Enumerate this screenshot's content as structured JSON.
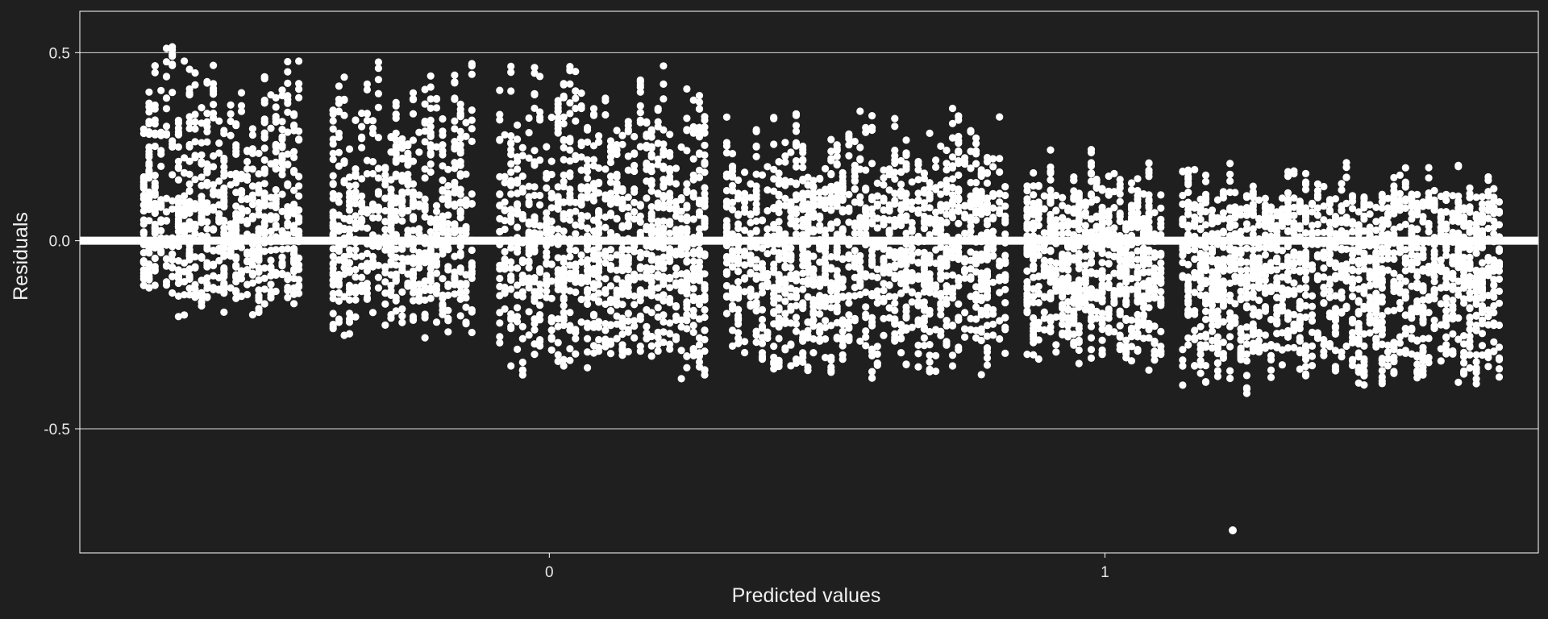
{
  "chart_data": {
    "type": "scatter",
    "title": "",
    "xlabel": "Predicted values",
    "ylabel": "Residuals",
    "xlim": [
      -0.845,
      1.78
    ],
    "ylim": [
      -0.83,
      0.61
    ],
    "x_ticks": [
      {
        "value": 0,
        "label": "0"
      },
      {
        "value": 1,
        "label": "1"
      }
    ],
    "y_ticks": [
      {
        "value": 0.5,
        "label": "0.5"
      },
      {
        "value": 0.0,
        "label": "0.0"
      },
      {
        "value": -0.5,
        "label": "-0.5"
      }
    ],
    "grid": true,
    "reference_line": {
      "y": 0
    },
    "colors": {
      "background": "#1f1f1f",
      "points": "#ffffff",
      "grid": "#ffffff",
      "frame": "#ffffff"
    },
    "clusters": [
      {
        "x_start": -0.73,
        "x_end": -0.45,
        "y_min": -0.22,
        "y_max": 0.53
      },
      {
        "x_start": -0.39,
        "x_end": -0.14,
        "y_min": -0.28,
        "y_max": 0.49
      },
      {
        "x_start": -0.09,
        "x_end": 0.28,
        "y_min": -0.38,
        "y_max": 0.48
      },
      {
        "x_start": 0.32,
        "x_end": 0.82,
        "y_min": -0.37,
        "y_max": 0.38
      },
      {
        "x_start": 0.86,
        "x_end": 1.1,
        "y_min": -0.36,
        "y_max": 0.26
      },
      {
        "x_start": 1.14,
        "x_end": 1.71,
        "y_min": -0.41,
        "y_max": 0.23
      }
    ],
    "outlier": {
      "x": 1.23,
      "y": -0.77
    }
  }
}
